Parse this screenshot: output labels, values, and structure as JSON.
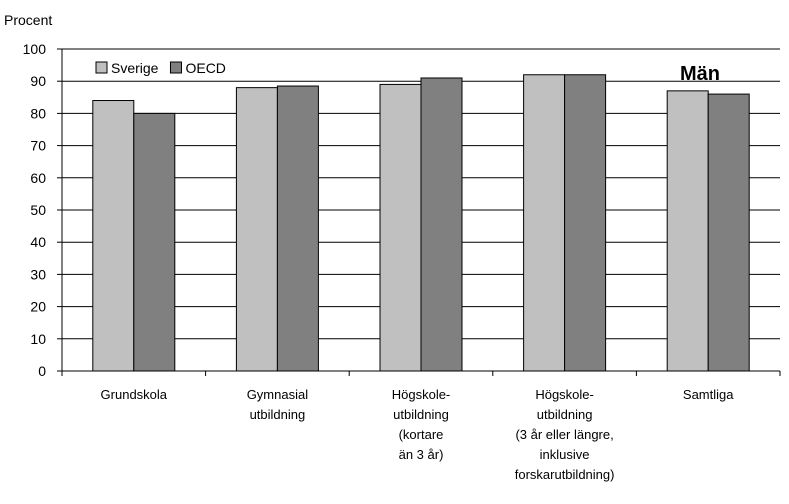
{
  "chart_data": {
    "type": "bar",
    "y_label": "Procent",
    "annotation": "Män",
    "categories": [
      "Grundskola",
      "Gymnasial\nutbildning",
      "Högskole-\nutbildning\n(kortare\nän 3 år)",
      "Högskole-\nutbildning\n(3 år eller längre,\ninklusive\nforskarutbildning)",
      "Samtliga"
    ],
    "series": [
      {
        "name": "Sverige",
        "color": "#c0c0c0",
        "values": [
          84,
          88,
          89,
          92,
          87
        ]
      },
      {
        "name": "OECD",
        "color": "#808080",
        "values": [
          80,
          88.5,
          91,
          92,
          86
        ]
      }
    ],
    "ylim": [
      0,
      100
    ],
    "yticks": [
      0,
      10,
      20,
      30,
      40,
      50,
      60,
      70,
      80,
      90,
      100
    ],
    "grid": true
  }
}
